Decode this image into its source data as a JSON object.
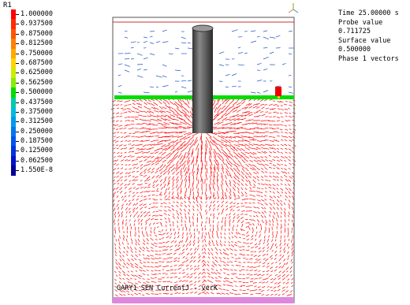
{
  "legend": {
    "title": "R1",
    "labels": [
      "1.000000",
      "0.937500",
      "0.875000",
      "0.812500",
      "0.750000",
      "0.687500",
      "0.625000",
      "0.562500",
      "0.500000",
      "0.437500",
      "0.375000",
      "0.312500",
      "0.250000",
      "0.187500",
      "0.125000",
      "0.062500",
      "1.550E-8"
    ],
    "colors": [
      "#ff0000",
      "#ff2a00",
      "#ff5500",
      "#ff8000",
      "#ffaa00",
      "#ffd400",
      "#ccee00",
      "#88ee00",
      "#00dd00",
      "#00ccaa",
      "#00bbdd",
      "#0099ee",
      "#0077ee",
      "#0055ee",
      "#0033dd",
      "#0011cc",
      "#000099"
    ]
  },
  "info": {
    "time_label": "Time 25.00000 s",
    "probe_label": "Probe value",
    "probe_value": "0.711725",
    "surface_label": "Surface value",
    "surface_value": "0.500000",
    "phase_label": "Phase 1 vectors"
  },
  "caption": "GARY1 SEN CurrentJ - verK",
  "colors": {
    "vector_red": "#ff0000",
    "vector_blue": "#2255cc",
    "surface_green": "#00dd00",
    "base_pink": "#dd88dd",
    "cylinder_dark": "#444444"
  },
  "icons": [
    "axis-triad-icon"
  ]
}
